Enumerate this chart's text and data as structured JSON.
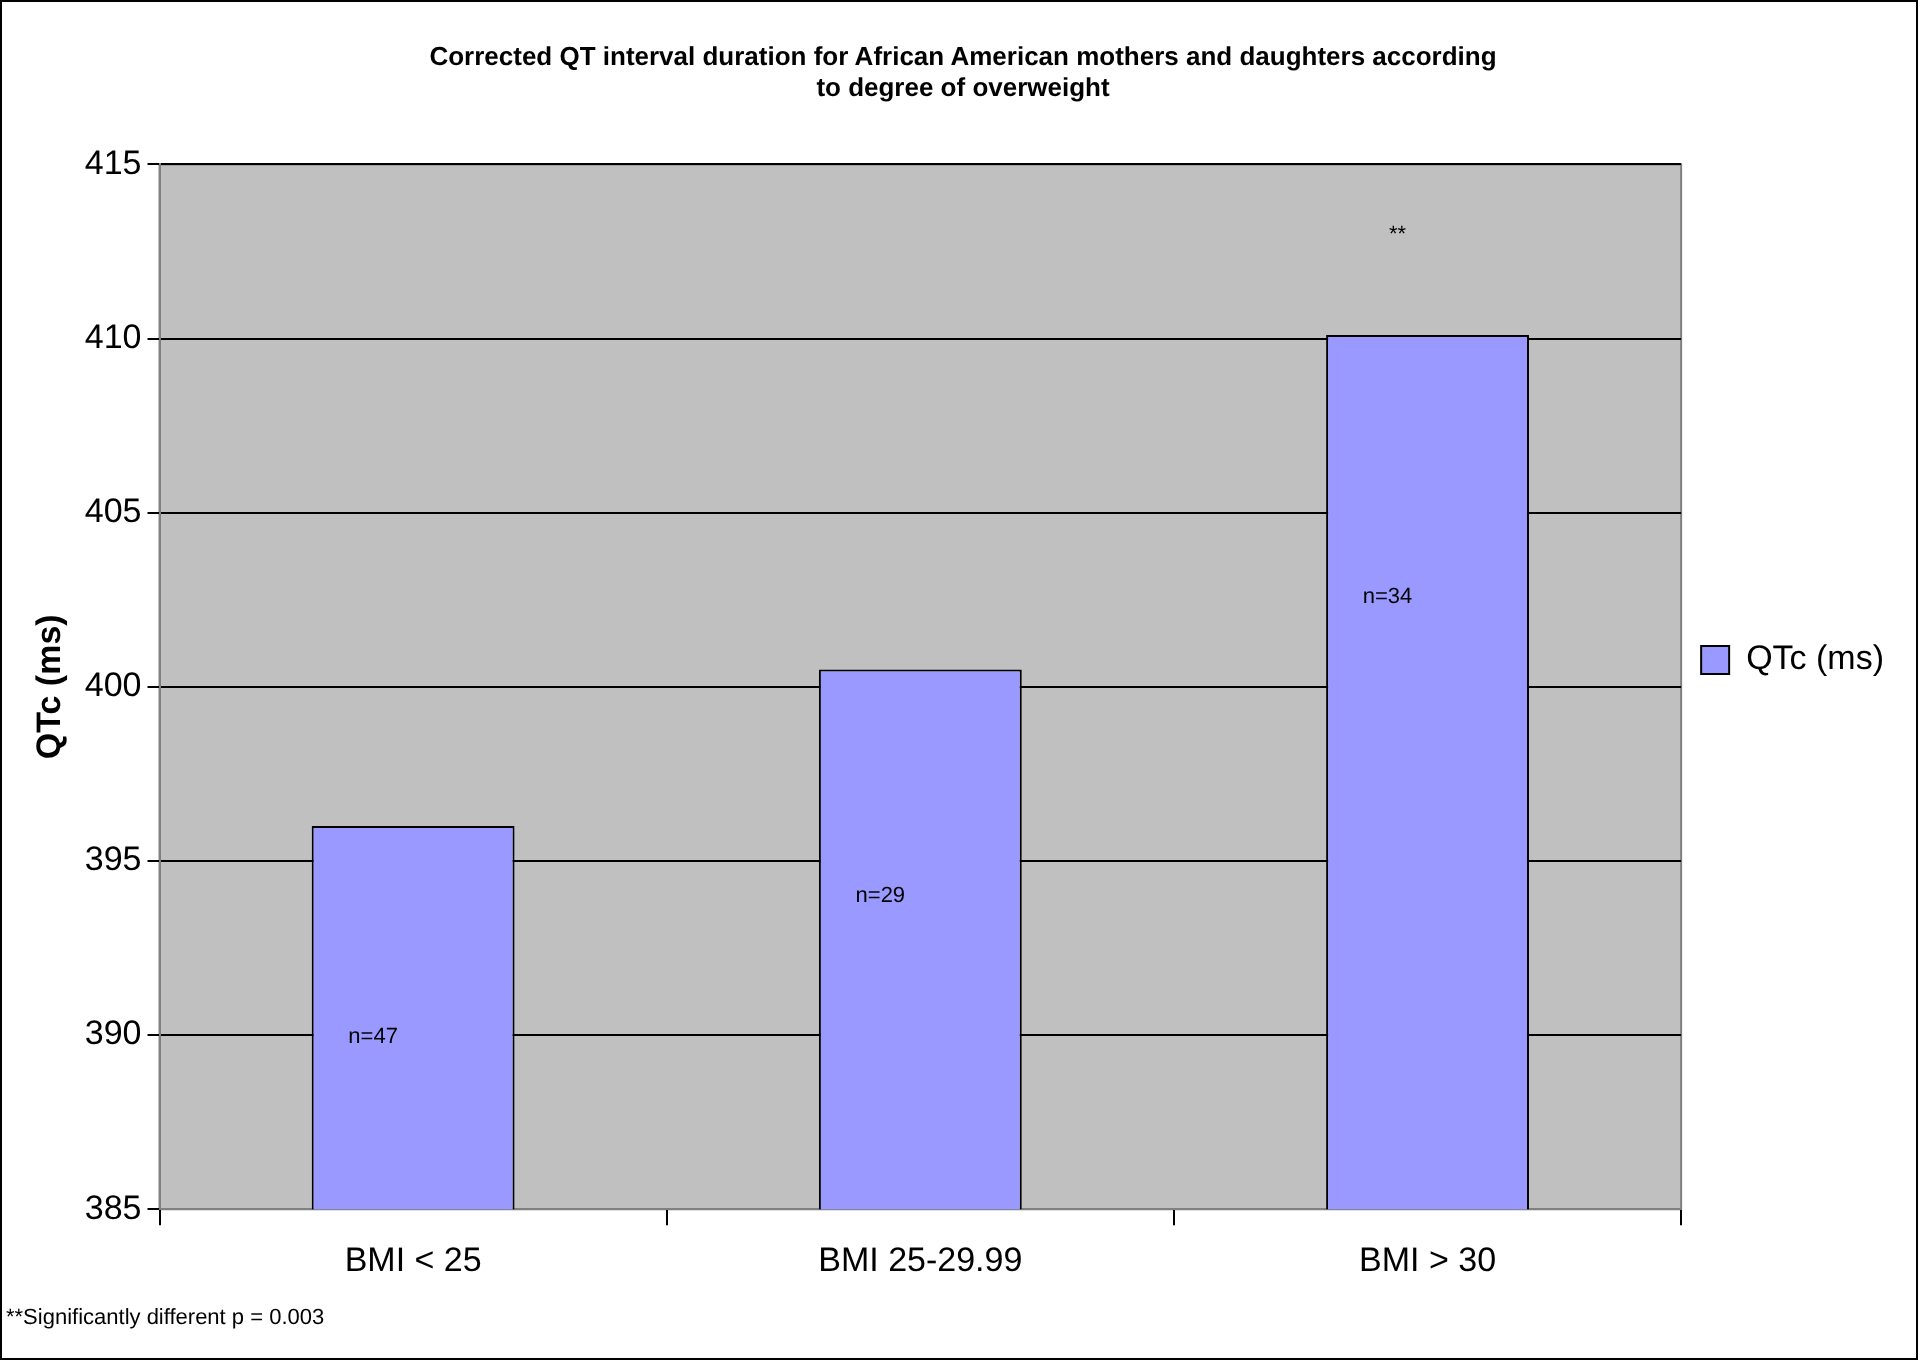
{
  "chart_data": {
    "type": "bar",
    "title": "Corrected QT interval duration for African American mothers and daughters according to degree of overweight",
    "ylabel": "QTc (ms)",
    "categories": [
      "BMI < 25",
      "BMI 25-29.99",
      "BMI > 30"
    ],
    "series": [
      {
        "name": "QTc (ms)",
        "color": "#9999ff",
        "values": [
          396.0,
          400.5,
          410.1
        ]
      }
    ],
    "ylim": [
      385,
      415
    ],
    "yticks": [
      385,
      390,
      395,
      400,
      405,
      410,
      415
    ],
    "grid": "y",
    "legend": "right",
    "annotations": [
      "n=47",
      "n=29",
      "n=34",
      "**",
      "**Significantly different  p = 0.003"
    ]
  }
}
